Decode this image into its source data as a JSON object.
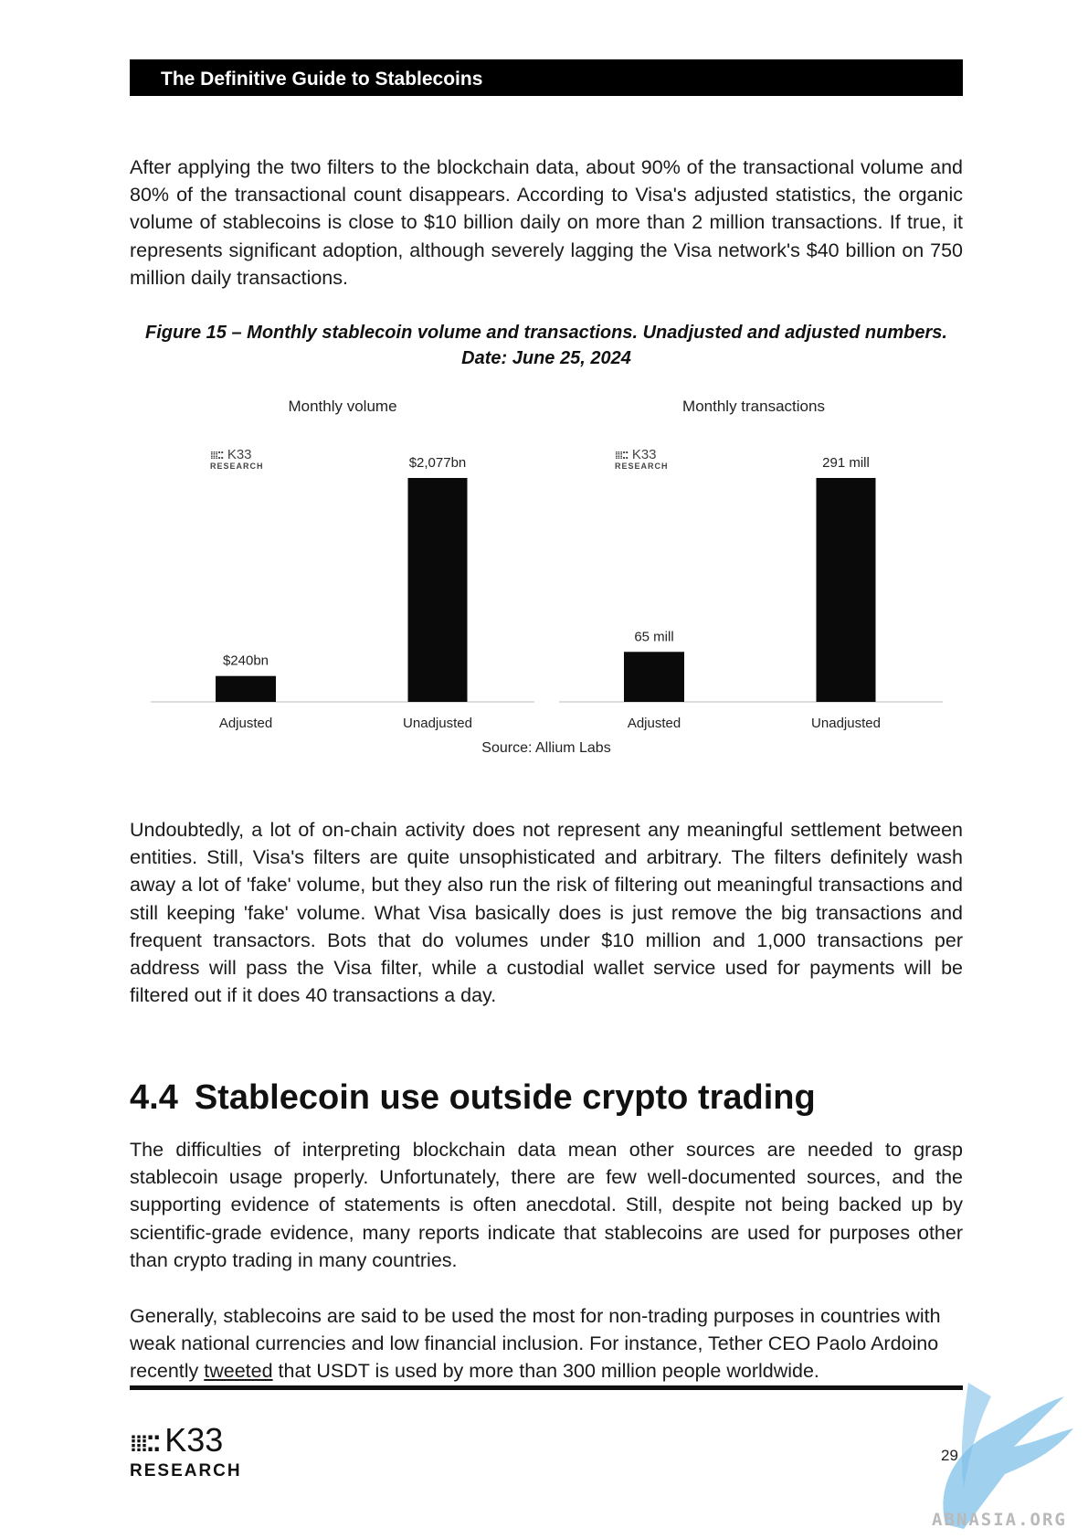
{
  "header": {
    "title": "The Definitive Guide to Stablecoins"
  },
  "paragraphs": {
    "p1": "After applying the two filters to the blockchain data, about 90% of the transactional volume and 80% of the transactional count disappears. According to Visa's adjusted statistics, the organic volume of stablecoins is close to $10 billion daily on more than 2 million transactions. If true, it represents significant adoption, although severely lagging the Visa network's $40 billion on 750 million daily transactions.",
    "p2": "Undoubtedly, a lot of on-chain activity does not represent any meaningful settlement between entities. Still, Visa's filters are quite unsophisticated and arbitrary. The filters definitely wash away a lot of 'fake' volume, but they also run the risk of filtering out meaningful transactions and still keeping 'fake' volume. What Visa basically does is just remove the big transactions and frequent transactors. Bots that do volumes under $10 million and 1,000 transactions per address will pass the Visa filter, while a custodial wallet service used for payments will be filtered out if it does 40 transactions a day.",
    "p3": "The difficulties of interpreting blockchain data mean other sources are needed to grasp stablecoin usage properly. Unfortunately, there are few well-documented sources, and the supporting evidence of statements is often anecdotal. Still, despite not being backed up by scientific-grade evidence, many reports indicate that stablecoins are used for purposes other than crypto trading in many countries.",
    "p4_before": "Generally, stablecoins are said to be used the most for non-trading purposes in countries with weak national currencies and low financial inclusion. For instance, Tether CEO Paolo Ardoino recently ",
    "p4_link": "tweeted",
    "p4_after": " that USDT is used by more than 300 million people worldwide."
  },
  "figure": {
    "caption_line1": "Figure 15 – Monthly stablecoin volume and transactions. Unadjusted and adjusted numbers.",
    "caption_line2": "Date: June 25, 2024",
    "source": "Source: Allium Labs",
    "logo_text": "K33",
    "logo_sub": "RESEARCH"
  },
  "chart_data": [
    {
      "type": "bar",
      "title": "Monthly volume",
      "categories": [
        "Adjusted",
        "Unadjusted"
      ],
      "values": [
        240,
        2077
      ],
      "data_labels": [
        "$240bn",
        "$2,077bn"
      ],
      "unit": "bn USD",
      "bar_color": "#0a0a0a"
    },
    {
      "type": "bar",
      "title": "Monthly transactions",
      "categories": [
        "Adjusted",
        "Unadjusted"
      ],
      "values": [
        65,
        291
      ],
      "data_labels": [
        "65 mill",
        "291 mill"
      ],
      "unit": "million",
      "bar_color": "#0a0a0a"
    }
  ],
  "section": {
    "number": "4.4",
    "title": "Stablecoin use outside crypto trading"
  },
  "footer": {
    "logo_text": "K33",
    "logo_sub": "RESEARCH",
    "page_number": "29",
    "watermark_text": "ABNASIA.ORG"
  }
}
